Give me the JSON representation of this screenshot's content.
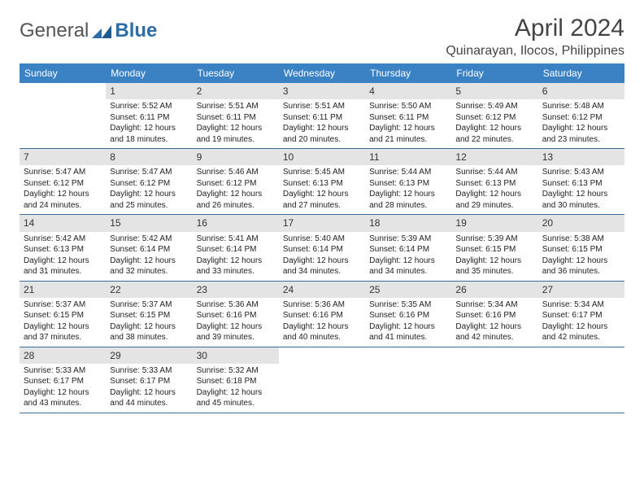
{
  "logo": {
    "text1": "General",
    "text2": "Blue",
    "color_general": "#555555",
    "color_blue": "#2d6ea8"
  },
  "title": "April 2024",
  "location": "Quinarayan, Ilocos, Philippines",
  "colors": {
    "header_bg": "#3a82c4",
    "header_text": "#ffffff",
    "daynum_bg": "#e4e4e4",
    "week_border": "#3a6a9a"
  },
  "day_names": [
    "Sunday",
    "Monday",
    "Tuesday",
    "Wednesday",
    "Thursday",
    "Friday",
    "Saturday"
  ],
  "weeks": [
    [
      {
        "n": "",
        "sr": "",
        "ss": "",
        "dl": ""
      },
      {
        "n": "1",
        "sr": "Sunrise: 5:52 AM",
        "ss": "Sunset: 6:11 PM",
        "dl": "Daylight: 12 hours and 18 minutes."
      },
      {
        "n": "2",
        "sr": "Sunrise: 5:51 AM",
        "ss": "Sunset: 6:11 PM",
        "dl": "Daylight: 12 hours and 19 minutes."
      },
      {
        "n": "3",
        "sr": "Sunrise: 5:51 AM",
        "ss": "Sunset: 6:11 PM",
        "dl": "Daylight: 12 hours and 20 minutes."
      },
      {
        "n": "4",
        "sr": "Sunrise: 5:50 AM",
        "ss": "Sunset: 6:11 PM",
        "dl": "Daylight: 12 hours and 21 minutes."
      },
      {
        "n": "5",
        "sr": "Sunrise: 5:49 AM",
        "ss": "Sunset: 6:12 PM",
        "dl": "Daylight: 12 hours and 22 minutes."
      },
      {
        "n": "6",
        "sr": "Sunrise: 5:48 AM",
        "ss": "Sunset: 6:12 PM",
        "dl": "Daylight: 12 hours and 23 minutes."
      }
    ],
    [
      {
        "n": "7",
        "sr": "Sunrise: 5:47 AM",
        "ss": "Sunset: 6:12 PM",
        "dl": "Daylight: 12 hours and 24 minutes."
      },
      {
        "n": "8",
        "sr": "Sunrise: 5:47 AM",
        "ss": "Sunset: 6:12 PM",
        "dl": "Daylight: 12 hours and 25 minutes."
      },
      {
        "n": "9",
        "sr": "Sunrise: 5:46 AM",
        "ss": "Sunset: 6:12 PM",
        "dl": "Daylight: 12 hours and 26 minutes."
      },
      {
        "n": "10",
        "sr": "Sunrise: 5:45 AM",
        "ss": "Sunset: 6:13 PM",
        "dl": "Daylight: 12 hours and 27 minutes."
      },
      {
        "n": "11",
        "sr": "Sunrise: 5:44 AM",
        "ss": "Sunset: 6:13 PM",
        "dl": "Daylight: 12 hours and 28 minutes."
      },
      {
        "n": "12",
        "sr": "Sunrise: 5:44 AM",
        "ss": "Sunset: 6:13 PM",
        "dl": "Daylight: 12 hours and 29 minutes."
      },
      {
        "n": "13",
        "sr": "Sunrise: 5:43 AM",
        "ss": "Sunset: 6:13 PM",
        "dl": "Daylight: 12 hours and 30 minutes."
      }
    ],
    [
      {
        "n": "14",
        "sr": "Sunrise: 5:42 AM",
        "ss": "Sunset: 6:13 PM",
        "dl": "Daylight: 12 hours and 31 minutes."
      },
      {
        "n": "15",
        "sr": "Sunrise: 5:42 AM",
        "ss": "Sunset: 6:14 PM",
        "dl": "Daylight: 12 hours and 32 minutes."
      },
      {
        "n": "16",
        "sr": "Sunrise: 5:41 AM",
        "ss": "Sunset: 6:14 PM",
        "dl": "Daylight: 12 hours and 33 minutes."
      },
      {
        "n": "17",
        "sr": "Sunrise: 5:40 AM",
        "ss": "Sunset: 6:14 PM",
        "dl": "Daylight: 12 hours and 34 minutes."
      },
      {
        "n": "18",
        "sr": "Sunrise: 5:39 AM",
        "ss": "Sunset: 6:14 PM",
        "dl": "Daylight: 12 hours and 34 minutes."
      },
      {
        "n": "19",
        "sr": "Sunrise: 5:39 AM",
        "ss": "Sunset: 6:15 PM",
        "dl": "Daylight: 12 hours and 35 minutes."
      },
      {
        "n": "20",
        "sr": "Sunrise: 5:38 AM",
        "ss": "Sunset: 6:15 PM",
        "dl": "Daylight: 12 hours and 36 minutes."
      }
    ],
    [
      {
        "n": "21",
        "sr": "Sunrise: 5:37 AM",
        "ss": "Sunset: 6:15 PM",
        "dl": "Daylight: 12 hours and 37 minutes."
      },
      {
        "n": "22",
        "sr": "Sunrise: 5:37 AM",
        "ss": "Sunset: 6:15 PM",
        "dl": "Daylight: 12 hours and 38 minutes."
      },
      {
        "n": "23",
        "sr": "Sunrise: 5:36 AM",
        "ss": "Sunset: 6:16 PM",
        "dl": "Daylight: 12 hours and 39 minutes."
      },
      {
        "n": "24",
        "sr": "Sunrise: 5:36 AM",
        "ss": "Sunset: 6:16 PM",
        "dl": "Daylight: 12 hours and 40 minutes."
      },
      {
        "n": "25",
        "sr": "Sunrise: 5:35 AM",
        "ss": "Sunset: 6:16 PM",
        "dl": "Daylight: 12 hours and 41 minutes."
      },
      {
        "n": "26",
        "sr": "Sunrise: 5:34 AM",
        "ss": "Sunset: 6:16 PM",
        "dl": "Daylight: 12 hours and 42 minutes."
      },
      {
        "n": "27",
        "sr": "Sunrise: 5:34 AM",
        "ss": "Sunset: 6:17 PM",
        "dl": "Daylight: 12 hours and 42 minutes."
      }
    ],
    [
      {
        "n": "28",
        "sr": "Sunrise: 5:33 AM",
        "ss": "Sunset: 6:17 PM",
        "dl": "Daylight: 12 hours and 43 minutes."
      },
      {
        "n": "29",
        "sr": "Sunrise: 5:33 AM",
        "ss": "Sunset: 6:17 PM",
        "dl": "Daylight: 12 hours and 44 minutes."
      },
      {
        "n": "30",
        "sr": "Sunrise: 5:32 AM",
        "ss": "Sunset: 6:18 PM",
        "dl": "Daylight: 12 hours and 45 minutes."
      },
      {
        "n": "",
        "sr": "",
        "ss": "",
        "dl": ""
      },
      {
        "n": "",
        "sr": "",
        "ss": "",
        "dl": ""
      },
      {
        "n": "",
        "sr": "",
        "ss": "",
        "dl": ""
      },
      {
        "n": "",
        "sr": "",
        "ss": "",
        "dl": ""
      }
    ]
  ]
}
